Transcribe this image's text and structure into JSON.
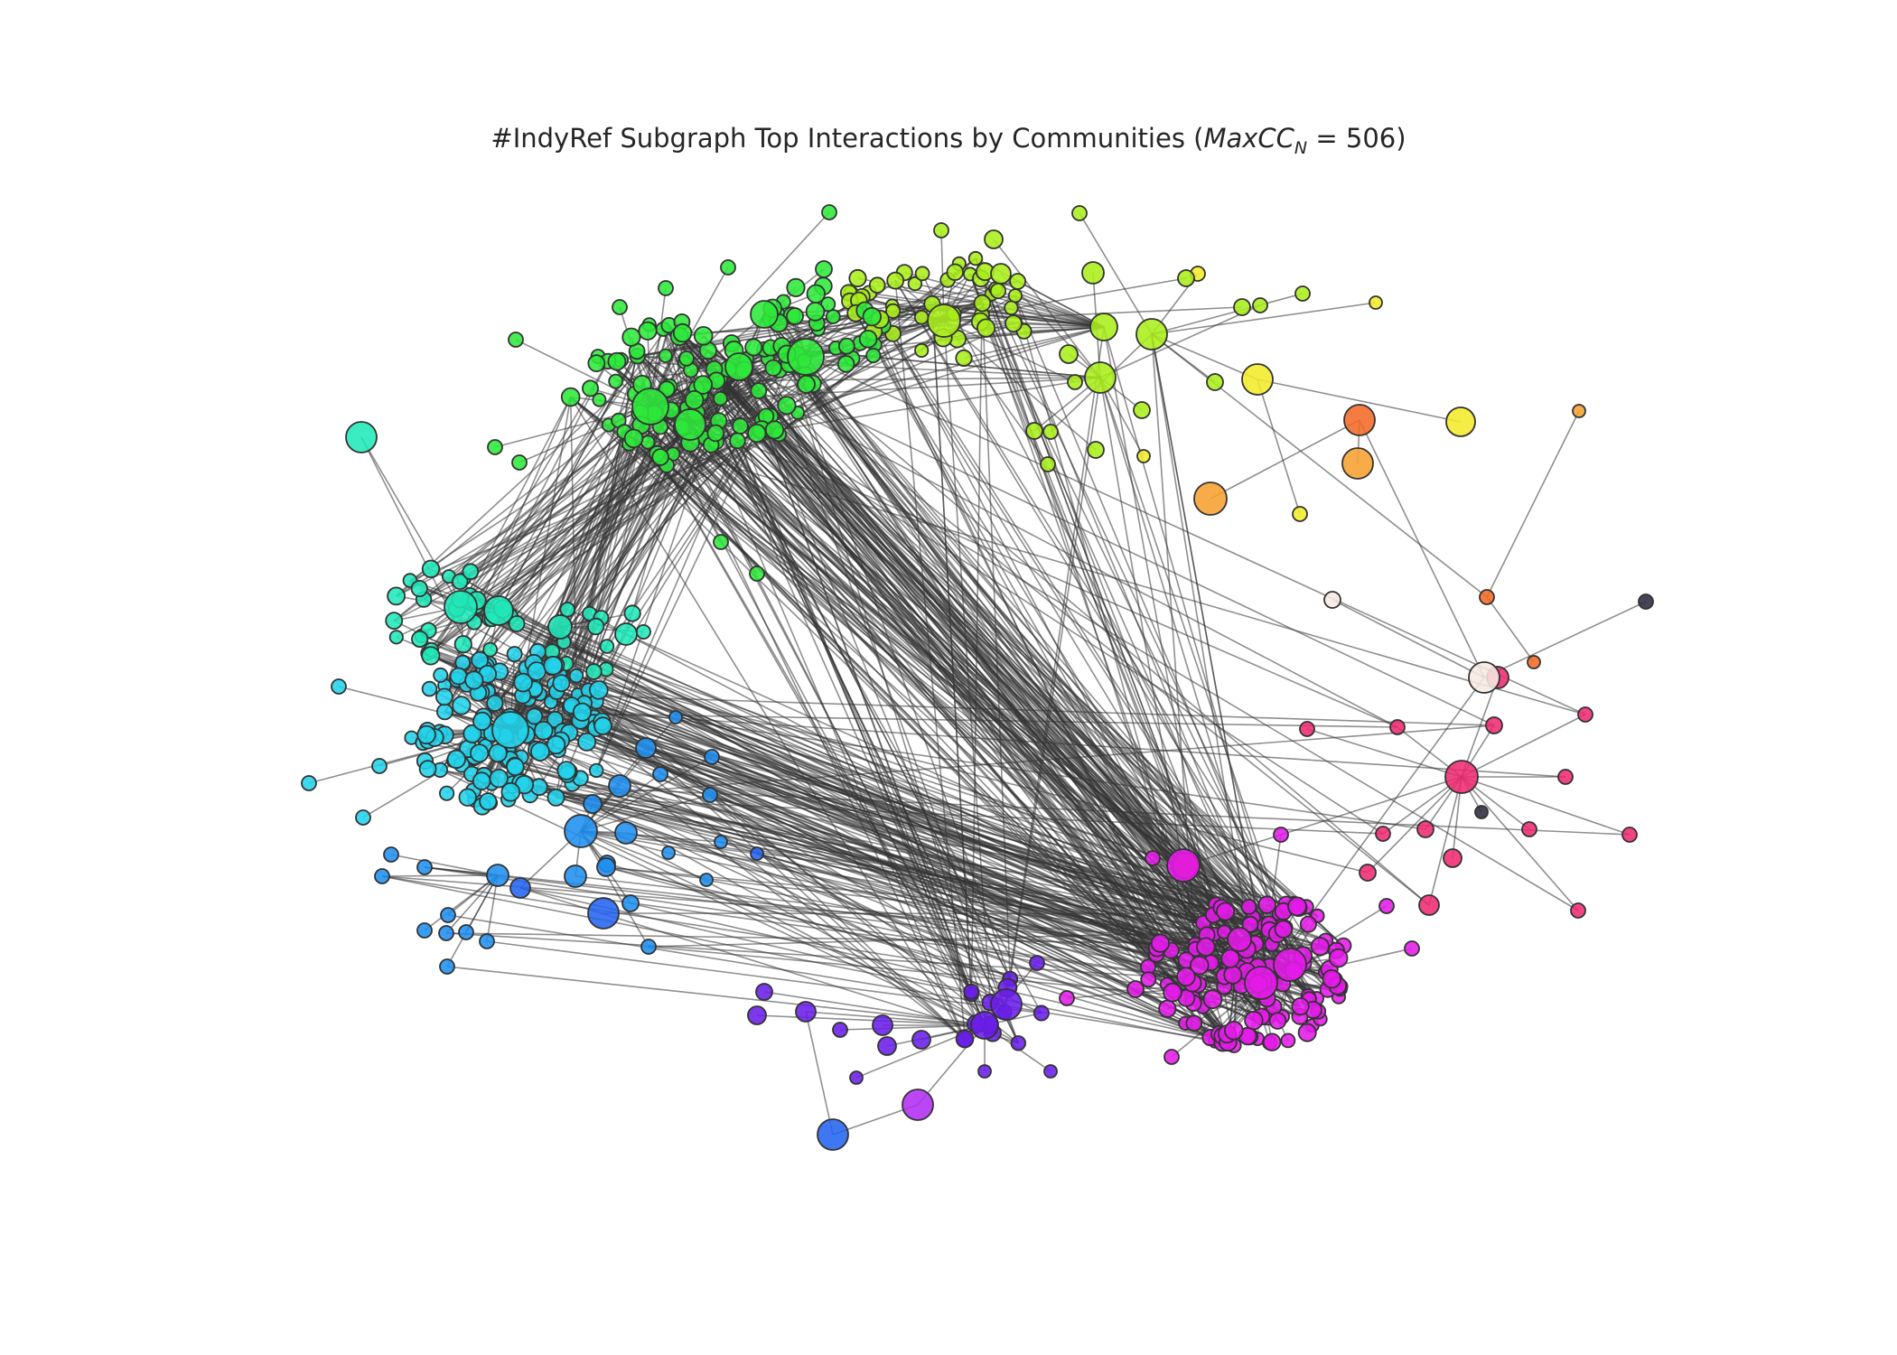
{
  "title": {
    "text": "#IndyRef Subgraph Top Interactions by Communities (",
    "math_main": "MaxCC",
    "math_sub": "N",
    "math_eq": " = 506",
    "close": ")"
  },
  "graph": {
    "max_cc_n": 506,
    "edge_color": "#333333",
    "node_stroke": "#333333",
    "communities": [
      {
        "name": "cyan-core",
        "color": "#22d3ea"
      },
      {
        "name": "teal",
        "color": "#20e8b8"
      },
      {
        "name": "green",
        "color": "#2ee83a"
      },
      {
        "name": "yellow-green",
        "color": "#a8ee1a"
      },
      {
        "name": "yellow",
        "color": "#f2ea2a"
      },
      {
        "name": "orange",
        "color": "#f7a030"
      },
      {
        "name": "red-orange",
        "color": "#f46a25"
      },
      {
        "name": "pink",
        "color": "#ee2a72"
      },
      {
        "name": "magenta",
        "color": "#e41ae8"
      },
      {
        "name": "violet",
        "color": "#6a1ee8"
      },
      {
        "name": "blue",
        "color": "#2464f0"
      },
      {
        "name": "blue-mid",
        "color": "#1f8ff0"
      },
      {
        "name": "purple",
        "color": "#b22cf2"
      },
      {
        "name": "cream",
        "color": "#f6ebe2"
      },
      {
        "name": "dark",
        "color": "#2b2b3c"
      }
    ]
  }
}
